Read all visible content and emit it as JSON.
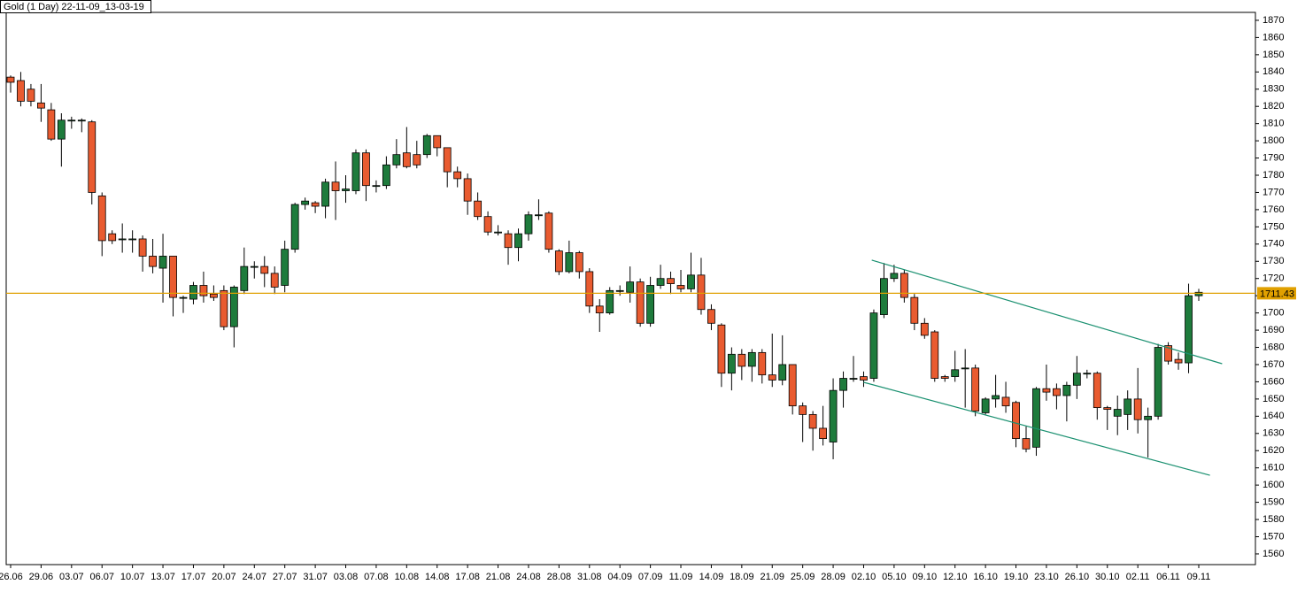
{
  "chart_data": {
    "type": "candlestick",
    "title": "Gold (1 Day) 22-11-09_13-03-19",
    "categories": [
      "26.06",
      null,
      null,
      "29.06",
      null,
      null,
      "03.07",
      null,
      null,
      "06.07",
      null,
      null,
      "10.07",
      null,
      null,
      "13.07",
      null,
      null,
      "17.07",
      null,
      null,
      "20.07",
      null,
      null,
      "24.07",
      null,
      null,
      "27.07",
      null,
      null,
      "31.07",
      null,
      null,
      "03.08",
      null,
      null,
      "07.08",
      null,
      null,
      "10.08",
      null,
      null,
      "14.08",
      null,
      null,
      "17.08",
      null,
      null,
      "21.08",
      null,
      null,
      "24.08",
      null,
      null,
      "28.08",
      null,
      null,
      "31.08",
      null,
      null,
      "04.09",
      null,
      null,
      "07.09",
      null,
      null,
      "11.09",
      null,
      null,
      "14.09",
      null,
      null,
      "18.09",
      null,
      null,
      "21.09",
      null,
      null,
      "25.09",
      null,
      null,
      "28.09",
      null,
      null,
      "02.10",
      null,
      null,
      "05.10",
      null,
      null,
      "09.10",
      null,
      null,
      "12.10",
      null,
      null,
      "16.10",
      null,
      null,
      "19.10",
      null,
      null,
      "23.10",
      null,
      null,
      "26.10",
      null,
      null,
      "30.10",
      null,
      null,
      "02.11",
      null,
      null,
      "06.11",
      null,
      null,
      "09.11"
    ],
    "open": [
      1837,
      1835,
      1830,
      1822,
      1818,
      1801,
      1812,
      1812,
      1811,
      1768,
      1746,
      1743,
      1743,
      1743,
      1733,
      1726,
      1733,
      1709,
      1708,
      1716,
      1711,
      1713,
      1692,
      1713,
      1727,
      1727,
      1723,
      1716,
      1737,
      1763,
      1764,
      1762,
      1776,
      1771,
      1771,
      1793,
      1774,
      1774,
      1786,
      1793,
      1792,
      1792,
      1803,
      1796,
      1782,
      1778,
      1765,
      1756,
      1747,
      1746,
      1738,
      1746,
      1757,
      1758,
      1736,
      1724,
      1735,
      1724,
      1704,
      1700,
      1713,
      1712,
      1718,
      1694,
      1716,
      1720,
      1716,
      1714,
      1722,
      1702,
      1693,
      1665,
      1676,
      1669,
      1677,
      1664,
      1661,
      1670,
      1646,
      1641,
      1633,
      1625,
      1655,
      1662,
      1663,
      1662,
      1699,
      1720,
      1723,
      1709,
      1694,
      1689,
      1663,
      1663,
      1668,
      1668,
      1642,
      1650,
      1651,
      1648,
      1627,
      1622,
      1656,
      1656,
      1652,
      1658,
      1665,
      1665,
      1645,
      1640,
      1641,
      1650,
      1638,
      1640,
      1681,
      1673,
      1671,
      1710
    ],
    "high": [
      1838,
      1840,
      1833,
      1833,
      1822,
      1816,
      1814,
      1813,
      1812,
      1770,
      1748,
      1752,
      1748,
      1745,
      1743,
      1746,
      1733,
      1710,
      1718,
      1724,
      1716,
      1716,
      1716,
      1738,
      1730,
      1733,
      1727,
      1742,
      1764,
      1767,
      1765,
      1778,
      1788,
      1780,
      1795,
      1795,
      1777,
      1791,
      1801,
      1808,
      1800,
      1804,
      1803,
      1796,
      1785,
      1781,
      1770,
      1759,
      1751,
      1748,
      1749,
      1759,
      1766,
      1759,
      1737,
      1742,
      1736,
      1726,
      1708,
      1715,
      1716,
      1727,
      1720,
      1721,
      1728,
      1724,
      1725,
      1735,
      1732,
      1705,
      1694,
      1680,
      1679,
      1679,
      1679,
      1688,
      1687,
      1670,
      1648,
      1643,
      1646,
      1662,
      1666,
      1675,
      1666,
      1702,
      1729,
      1728,
      1725,
      1711,
      1697,
      1690,
      1664,
      1678,
      1679,
      1670,
      1651,
      1664,
      1660,
      1649,
      1634,
      1657,
      1670,
      1659,
      1660,
      1675,
      1667,
      1666,
      1646,
      1652,
      1655,
      1668,
      1645,
      1682,
      1683,
      1677,
      1717,
      1714
    ],
    "low": [
      1828,
      1820,
      1820,
      1811,
      1800,
      1785,
      1807,
      1805,
      1763,
      1733,
      1740,
      1735,
      1735,
      1724,
      1723,
      1706,
      1698,
      1700,
      1705,
      1706,
      1707,
      1690,
      1680,
      1711,
      1720,
      1715,
      1711,
      1712,
      1735,
      1760,
      1758,
      1755,
      1754,
      1764,
      1769,
      1765,
      1770,
      1772,
      1784,
      1784,
      1784,
      1790,
      1791,
      1773,
      1773,
      1757,
      1754,
      1745,
      1745,
      1728,
      1730,
      1742,
      1754,
      1735,
      1722,
      1723,
      1720,
      1700,
      1689,
      1699,
      1710,
      1706,
      1692,
      1692,
      1714,
      1711,
      1712,
      1712,
      1699,
      1690,
      1657,
      1655,
      1661,
      1660,
      1659,
      1657,
      1658,
      1641,
      1625,
      1620,
      1623,
      1615,
      1645,
      1660,
      1657,
      1660,
      1697,
      1718,
      1706,
      1690,
      1685,
      1660,
      1660,
      1660,
      1645,
      1640,
      1641,
      1645,
      1642,
      1622,
      1619,
      1617,
      1649,
      1644,
      1637,
      1650,
      1662,
      1638,
      1632,
      1629,
      1632,
      1630,
      1616,
      1638,
      1670,
      1667,
      1665,
      1707
    ],
    "close": [
      1834,
      1823,
      1823,
      1819,
      1801,
      1812,
      1812,
      1812,
      1770,
      1742,
      1742,
      1743,
      1743,
      1733,
      1727,
      1733,
      1709,
      1709,
      1716,
      1710,
      1709,
      1692,
      1715,
      1727,
      1727,
      1723,
      1715,
      1737,
      1763,
      1765,
      1762,
      1776,
      1771,
      1772,
      1793,
      1774,
      1774,
      1786,
      1792,
      1785,
      1786,
      1803,
      1796,
      1782,
      1778,
      1765,
      1756,
      1747,
      1747,
      1738,
      1746,
      1757,
      1757,
      1737,
      1724,
      1735,
      1724,
      1704,
      1700,
      1713,
      1713,
      1718,
      1694,
      1716,
      1720,
      1717,
      1714,
      1722,
      1702,
      1694,
      1665,
      1676,
      1669,
      1677,
      1664,
      1661,
      1670,
      1646,
      1641,
      1633,
      1627,
      1655,
      1662,
      1662,
      1661,
      1700,
      1720,
      1723,
      1709,
      1694,
      1687,
      1662,
      1662,
      1667,
      1668,
      1643,
      1650,
      1652,
      1646,
      1627,
      1621,
      1656,
      1654,
      1652,
      1658,
      1665,
      1665,
      1645,
      1644,
      1644,
      1650,
      1638,
      1640,
      1680,
      1672,
      1671,
      1710,
      1712
    ],
    "up_color": "#1e7b3c",
    "down_color": "#e95b30",
    "ylim": [
      1553.8,
      1874.6
    ],
    "yticks": [
      1560,
      1570,
      1580,
      1590,
      1600,
      1610,
      1620,
      1630,
      1640,
      1650,
      1660,
      1670,
      1680,
      1690,
      1700,
      1710,
      1720,
      1730,
      1740,
      1750,
      1760,
      1770,
      1780,
      1790,
      1800,
      1810,
      1820,
      1830,
      1840,
      1850,
      1860,
      1870
    ],
    "last_price": 1711.43,
    "last_price_color": "#e0a000",
    "trendlines": [
      {
        "color": "#1a9070",
        "x": [
          84.8,
          119.3
        ],
        "y": [
          1730.7,
          1670.5
        ]
      },
      {
        "color": "#1a9070",
        "x": [
          84.0,
          118.1
        ],
        "y": [
          1659.7,
          1605.7
        ]
      }
    ]
  }
}
